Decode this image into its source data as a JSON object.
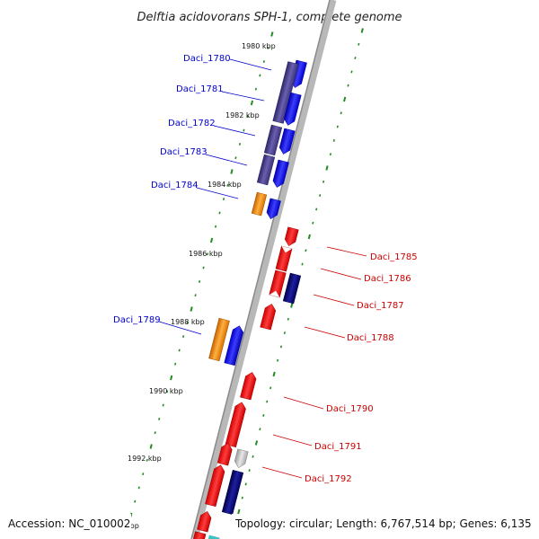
{
  "title": "Delftia acidovorans SPH-1, complete genome",
  "footer": {
    "accession": "Accession: NC_010002",
    "topology": "Topology: circular; Length: 6,767,514 bp; Genes: 6,135"
  },
  "kbp_labels": [
    "1980 kbp",
    "1982 kbp",
    "1984 kbp",
    "1986 kbp",
    "1988 kbp",
    "1990 kbp",
    "1992 kbp",
    "kbp"
  ],
  "gene_labels_left": [
    "Daci_1780",
    "Daci_1781",
    "Daci_1782",
    "Daci_1783",
    "Daci_1784",
    "Daci_1789"
  ],
  "gene_labels_right": [
    "Daci_1785",
    "Daci_1786",
    "Daci_1787",
    "Daci_1788",
    "Daci_1790",
    "Daci_1791",
    "Daci_1792"
  ],
  "colors": {
    "plus_strand": "#0000ff",
    "minus_strand": "#ff0000",
    "dark_purple": "#4a3f8a",
    "orange": "#ff8c00",
    "navy": "#000080",
    "gray": "#c0c0c0",
    "tick_green": "#228b22",
    "label_blue": "#0000cc",
    "label_red": "#cc0000"
  }
}
